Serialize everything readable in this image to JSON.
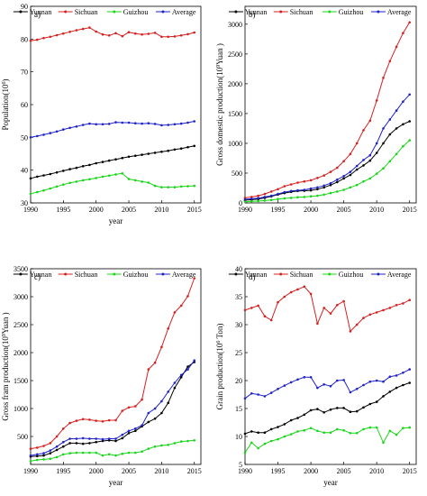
{
  "chart_data": [
    {
      "panel": "a)",
      "type": "line",
      "xlabel": "year",
      "ylabel": "Population(10^6)",
      "xlim": [
        1990,
        2016
      ],
      "ylim": [
        30,
        90
      ],
      "xticks": [
        "1990",
        "1995",
        "2000",
        "2005",
        "2010",
        "2015"
      ],
      "yticks": [
        "30",
        "40",
        "50",
        "60",
        "70",
        "80",
        "90"
      ],
      "legend_position": "top",
      "x": [
        1990,
        1991,
        1992,
        1993,
        1994,
        1995,
        1996,
        1997,
        1998,
        1999,
        2000,
        2001,
        2002,
        2003,
        2004,
        2005,
        2006,
        2007,
        2008,
        2009,
        2010,
        2011,
        2012,
        2013,
        2014,
        2015
      ],
      "series": [
        {
          "name": "Yunnan",
          "color": "#000000",
          "values": [
            37.5,
            38.0,
            38.4,
            38.8,
            39.3,
            39.8,
            40.3,
            40.7,
            41.2,
            41.6,
            42.1,
            42.5,
            42.9,
            43.3,
            43.7,
            44.1,
            44.4,
            44.7,
            45.0,
            45.3,
            45.6,
            45.9,
            46.3,
            46.6,
            47.0,
            47.4
          ]
        },
        {
          "name": "Sichuan",
          "color": "#d62020",
          "values": [
            79.5,
            79.8,
            80.3,
            80.7,
            81.2,
            81.7,
            82.2,
            82.7,
            83.1,
            83.5,
            82.3,
            81.4,
            81.1,
            81.8,
            80.9,
            82.1,
            81.7,
            81.4,
            81.6,
            81.9,
            80.7,
            80.7,
            80.8,
            81.1,
            81.5,
            82.0
          ]
        },
        {
          "name": "Guizhou",
          "color": "#19d619",
          "values": [
            32.8,
            33.3,
            33.8,
            34.4,
            35.0,
            35.6,
            36.1,
            36.5,
            36.9,
            37.2,
            37.6,
            38.0,
            38.3,
            38.7,
            39.0,
            37.3,
            36.9,
            36.5,
            36.2,
            35.2,
            34.8,
            34.8,
            34.8,
            35.0,
            35.1,
            35.2
          ]
        },
        {
          "name": "Average",
          "color": "#1e22c8",
          "values": [
            50.0,
            50.4,
            50.8,
            51.3,
            51.8,
            52.4,
            52.9,
            53.3,
            53.8,
            54.2,
            54.0,
            54.0,
            54.1,
            54.6,
            54.5,
            54.5,
            54.3,
            54.2,
            54.3,
            54.1,
            53.7,
            53.8,
            54.0,
            54.2,
            54.5,
            54.9
          ]
        }
      ]
    },
    {
      "panel": "b)",
      "type": "line",
      "xlabel": "",
      "ylabel": "Gross domestic production(10^9Yuan )",
      "xlim": [
        1990,
        2016
      ],
      "ylim": [
        0,
        3300
      ],
      "xticks": [
        "1990",
        "1995",
        "2000",
        "2005",
        "2010",
        "2015"
      ],
      "yticks": [
        "0",
        "500",
        "1000",
        "1500",
        "2000",
        "2500",
        "3000"
      ],
      "legend_position": "top",
      "x": [
        1990,
        1991,
        1992,
        1993,
        1994,
        1995,
        1996,
        1997,
        1998,
        1999,
        2000,
        2001,
        2002,
        2003,
        2004,
        2005,
        2006,
        2007,
        2008,
        2009,
        2010,
        2011,
        2012,
        2013,
        2014,
        2015
      ],
      "series": [
        {
          "name": "Yunnan",
          "color": "#000000",
          "values": [
            45,
            55,
            65,
            85,
            110,
            140,
            165,
            185,
            200,
            205,
            210,
            230,
            260,
            300,
            350,
            410,
            470,
            560,
            630,
            710,
            840,
            1000,
            1150,
            1250,
            1320,
            1370
          ]
        },
        {
          "name": "Sichuan",
          "color": "#d62020",
          "values": [
            85,
            100,
            120,
            150,
            190,
            230,
            280,
            310,
            340,
            360,
            380,
            420,
            460,
            520,
            590,
            700,
            820,
            1000,
            1220,
            1380,
            1720,
            2100,
            2380,
            2620,
            2850,
            3030
          ]
        },
        {
          "name": "Guizhou",
          "color": "#19d619",
          "values": [
            20,
            25,
            30,
            40,
            50,
            65,
            75,
            85,
            95,
            100,
            110,
            120,
            140,
            165,
            190,
            220,
            260,
            300,
            360,
            410,
            490,
            580,
            700,
            820,
            950,
            1050
          ]
        },
        {
          "name": "Average",
          "color": "#1e22c8",
          "values": [
            60,
            70,
            80,
            100,
            120,
            150,
            180,
            200,
            210,
            220,
            240,
            260,
            290,
            330,
            390,
            450,
            520,
            620,
            720,
            800,
            1000,
            1250,
            1400,
            1550,
            1700,
            1820
          ]
        }
      ]
    },
    {
      "panel": "c)",
      "type": "line",
      "xlabel": "year",
      "ylabel": "Gross fram production(10^9Yuan )",
      "xlim": [
        1990,
        2016
      ],
      "ylim": [
        0,
        3500
      ],
      "xticks": [
        "1990",
        "1995",
        "2000",
        "2005",
        "2010",
        "2015"
      ],
      "yticks": [
        "500",
        "1000",
        "1500",
        "2000",
        "2500",
        "3000",
        "3500"
      ],
      "legend_position": "top",
      "x": [
        1990,
        1991,
        1992,
        1993,
        1994,
        1995,
        1996,
        1997,
        1998,
        1999,
        2000,
        2001,
        2002,
        2003,
        2004,
        2005,
        2006,
        2007,
        2008,
        2009,
        2010,
        2011,
        2012,
        2013,
        2014,
        2015
      ],
      "series": [
        {
          "name": "Yunnan",
          "color": "#000000",
          "values": [
            140,
            150,
            160,
            200,
            260,
            320,
            380,
            380,
            370,
            380,
            400,
            420,
            430,
            420,
            470,
            560,
            600,
            680,
            760,
            820,
            920,
            1100,
            1370,
            1560,
            1750,
            1830
          ]
        },
        {
          "name": "Sichuan",
          "color": "#d62020",
          "values": [
            280,
            300,
            330,
            380,
            500,
            640,
            740,
            780,
            810,
            800,
            780,
            770,
            790,
            790,
            960,
            1020,
            1040,
            1160,
            1700,
            1820,
            2100,
            2430,
            2720,
            2840,
            3010,
            3330
          ]
        },
        {
          "name": "Guizhou",
          "color": "#19d619",
          "values": [
            60,
            80,
            90,
            100,
            130,
            180,
            200,
            210,
            210,
            210,
            210,
            160,
            180,
            160,
            190,
            210,
            210,
            230,
            280,
            320,
            340,
            350,
            380,
            410,
            420,
            430
          ]
        },
        {
          "name": "Average",
          "color": "#1e22c8",
          "values": [
            160,
            180,
            200,
            250,
            320,
            400,
            460,
            460,
            470,
            460,
            460,
            450,
            460,
            460,
            530,
            600,
            640,
            700,
            920,
            1000,
            1130,
            1300,
            1460,
            1600,
            1700,
            1860
          ]
        }
      ]
    },
    {
      "panel": "d)",
      "type": "line",
      "xlabel": "year",
      "ylabel": "Grain production(10^6 Ton)",
      "xlim": [
        1990,
        2016
      ],
      "ylim": [
        5,
        40
      ],
      "xticks": [
        "1990",
        "1995",
        "2000",
        "2005",
        "2010",
        "2015"
      ],
      "yticks": [
        "5",
        "10",
        "15",
        "20",
        "25",
        "30",
        "35",
        "40"
      ],
      "legend_position": "top",
      "x": [
        1990,
        1991,
        1992,
        1993,
        1994,
        1995,
        1996,
        1997,
        1998,
        1999,
        2000,
        2001,
        2002,
        2003,
        2004,
        2005,
        2006,
        2007,
        2008,
        2009,
        2010,
        2011,
        2012,
        2013,
        2014,
        2015
      ],
      "series": [
        {
          "name": "Yunnan",
          "color": "#000000",
          "values": [
            10.5,
            10.9,
            10.7,
            10.7,
            11.3,
            11.7,
            12.2,
            12.9,
            13.3,
            13.9,
            14.7,
            14.9,
            14.3,
            14.8,
            15.1,
            15.1,
            14.4,
            14.5,
            15.2,
            15.8,
            16.2,
            17.2,
            18.0,
            18.7,
            19.2,
            19.6
          ]
        },
        {
          "name": "Sichuan",
          "color": "#d62020",
          "values": [
            32.6,
            33.0,
            33.4,
            31.5,
            30.8,
            34.0,
            35.0,
            35.8,
            36.3,
            36.8,
            35.5,
            30.2,
            33.0,
            32.0,
            33.5,
            34.2,
            28.8,
            30.0,
            31.2,
            31.8,
            32.2,
            32.6,
            33.0,
            33.5,
            33.8,
            34.4
          ]
        },
        {
          "name": "Guizhou",
          "color": "#19d619",
          "values": [
            7.1,
            8.9,
            7.9,
            8.7,
            9.2,
            9.5,
            10.0,
            10.4,
            10.9,
            11.1,
            11.5,
            11.0,
            10.7,
            10.7,
            11.3,
            11.1,
            10.6,
            10.6,
            11.3,
            11.6,
            11.6,
            8.9,
            11.0,
            10.3,
            11.5,
            11.6
          ]
        },
        {
          "name": "Average",
          "color": "#1e22c8",
          "values": [
            16.8,
            17.7,
            17.5,
            17.2,
            17.8,
            18.5,
            19.1,
            19.7,
            20.2,
            20.6,
            20.6,
            18.7,
            19.3,
            19.0,
            20.0,
            20.1,
            17.9,
            18.5,
            19.2,
            19.8,
            20.0,
            19.8,
            20.7,
            20.9,
            21.4,
            22.0
          ]
        }
      ]
    }
  ]
}
